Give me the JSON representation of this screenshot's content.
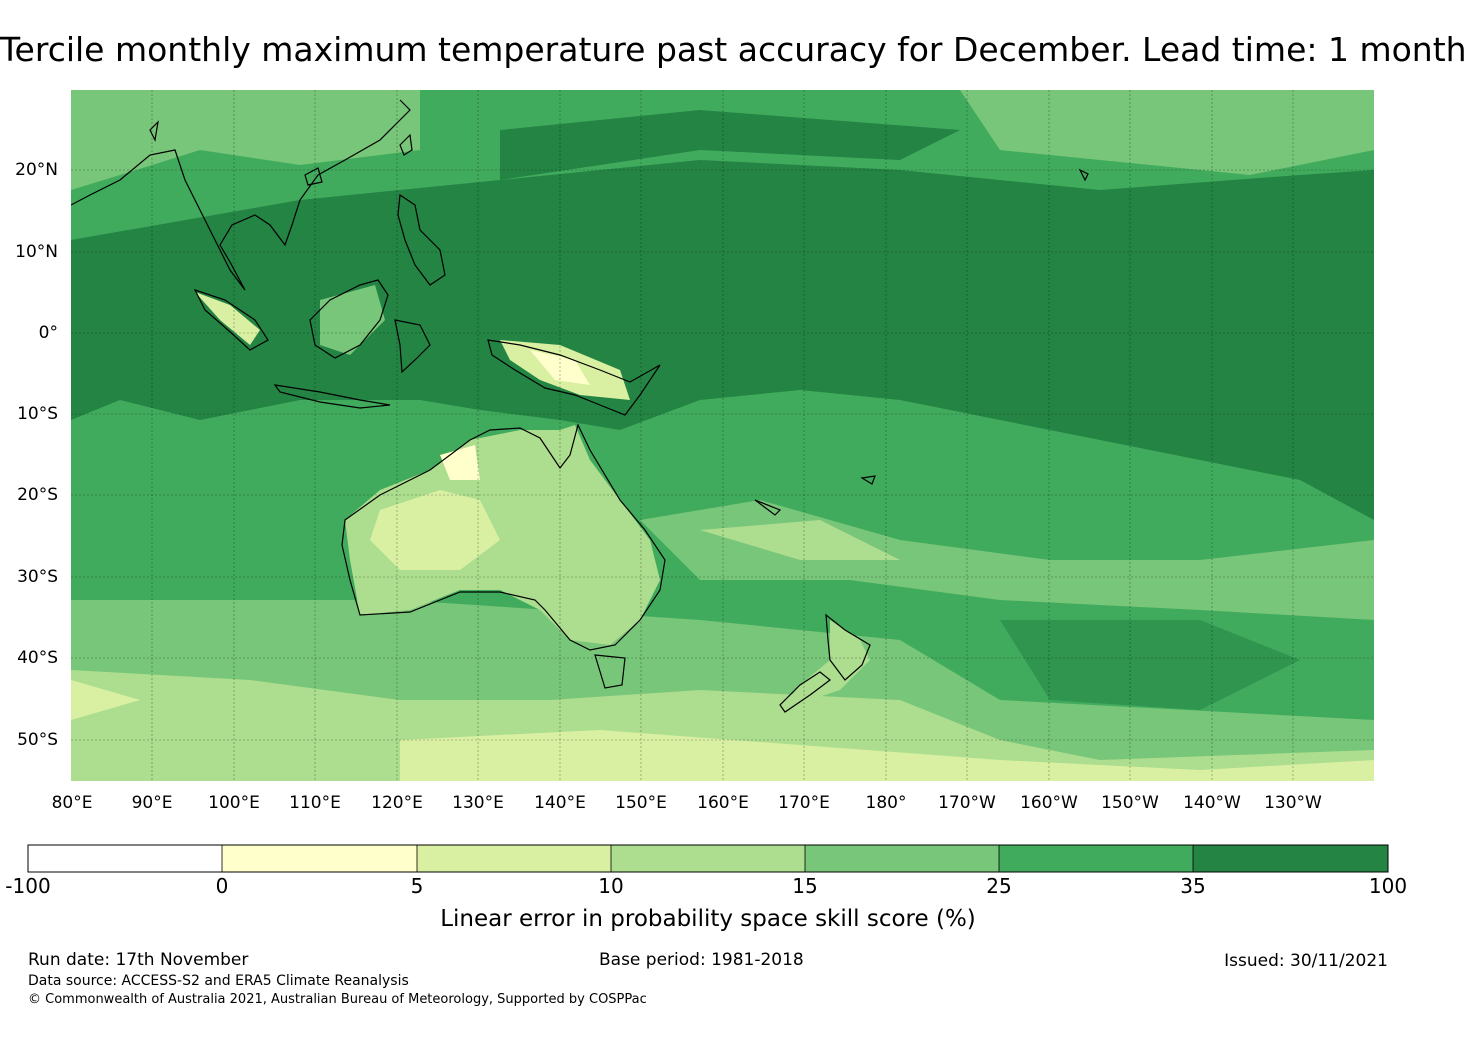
{
  "title": "Tercile monthly maximum temperature past accuracy for December. Lead time: 1 month",
  "map": {
    "lat_labels": [
      "20°N",
      "10°N",
      "0°",
      "10°S",
      "20°S",
      "30°S",
      "40°S",
      "50°S"
    ],
    "lon_labels": [
      "80°E",
      "90°E",
      "100°E",
      "110°E",
      "120°E",
      "130°E",
      "140°E",
      "150°E",
      "160°E",
      "170°E",
      "180°",
      "170°W",
      "160°W",
      "150°W",
      "140°W",
      "130°W"
    ],
    "lat_range": [
      -55,
      30
    ],
    "lon_range": [
      80,
      240
    ]
  },
  "colorbar": {
    "ticks": [
      "-100",
      "0",
      "5",
      "10",
      "15",
      "25",
      "35",
      "100"
    ],
    "colors": [
      "#ffffff",
      "#ffffcc",
      "#d9f0a3",
      "#addd8e",
      "#78c679",
      "#41ab5d",
      "#238443"
    ],
    "label": "Linear error in probability space skill score (%)"
  },
  "footer": {
    "run_date": "Run date: 17th November",
    "base_period": "Base period: 1981-2018",
    "issued": "Issued: 30/11/2021",
    "data_source": "Data source: ACCESS-S2 and ERA5 Climate Reanalysis",
    "copyright": "© Commonwealth of Australia 2021, Australian Bureau of Meteorology, Supported by COSPPac"
  }
}
